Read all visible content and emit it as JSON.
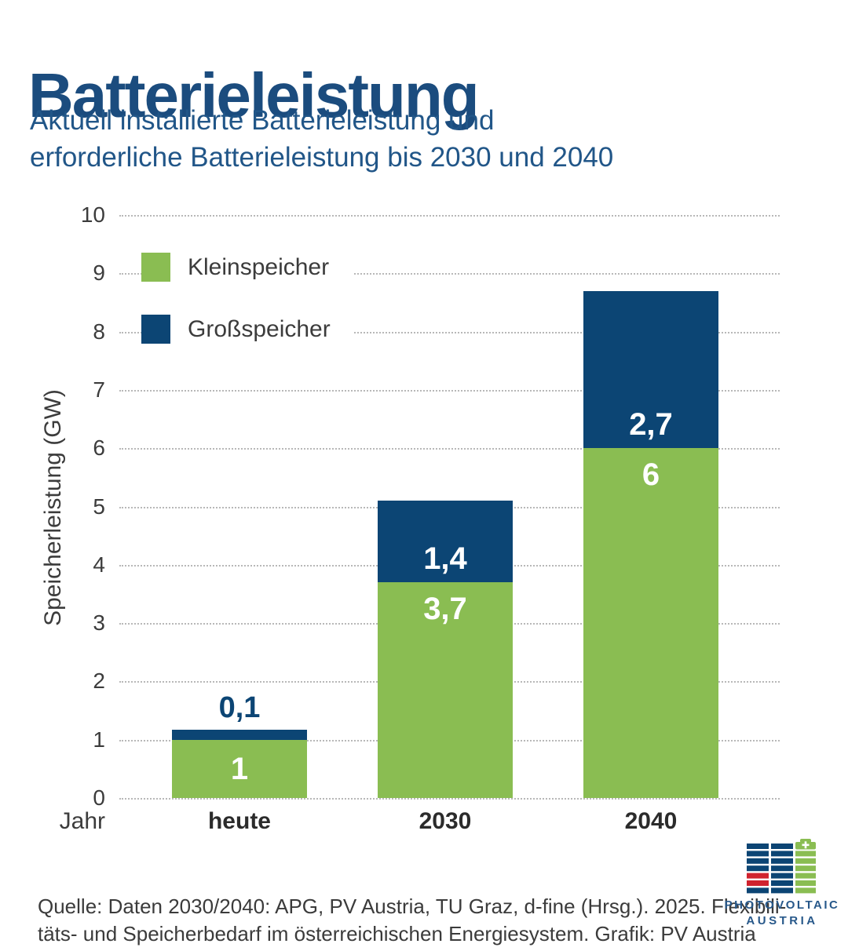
{
  "header": {
    "title": "Batterieleistung",
    "subtitle": "Aktuell installierte Batterieleistung und\nerforderliche Batterieleistung bis 2030 und 2040"
  },
  "chart_data": {
    "type": "bar",
    "subtype": "stacked-vertical",
    "categories": [
      "heute",
      "2030",
      "2040"
    ],
    "series": [
      {
        "name": "Kleinspeicher",
        "color_key": "bar_green",
        "values": [
          1,
          3.7,
          6
        ],
        "labels": [
          "1",
          "3,7",
          "6"
        ]
      },
      {
        "name": "Großspeicher",
        "color_key": "bar_blue",
        "values": [
          0.1,
          1.4,
          2.7
        ],
        "labels": [
          "0,1",
          "1,4",
          "2,7"
        ]
      }
    ],
    "totals": [
      1.1,
      5.1,
      8.7
    ],
    "xlabel": "Jahr",
    "ylabel": "Speicherleistung (GW)",
    "ylim": [
      0,
      10
    ],
    "ytick_step": 1,
    "yticks": [
      0,
      1,
      2,
      3,
      4,
      5,
      6,
      7,
      8,
      9,
      10
    ],
    "grid": "horizontal-dotted",
    "legend_position": "top-left-inside"
  },
  "footer": {
    "source": "Quelle: Daten 2030/2040: APG, PV Austria, TU Graz, d-fine (Hrsg.). 2025. Flexibili-\ntäts- und Speicherbedarf im österreichischen Energiesystem. Grafik: PV Austria",
    "logo": {
      "name": "pv-austria-battery-logo",
      "line1": "PHOTOVOLTAIC",
      "line2": "AUSTRIA"
    }
  },
  "colors": {
    "title_blue": "#1b4c7e",
    "subtitle_blue": "#215688",
    "bar_green": "#8abd52",
    "bar_blue": "#0c4574",
    "outside_label_blue": "#0c4574",
    "logo_red": "#d0232e",
    "logo_text_blue": "#27588a",
    "grid_gray": "#b8b8b8",
    "axis_text": "#3c3c3c",
    "category_text": "#2b2b2b"
  }
}
